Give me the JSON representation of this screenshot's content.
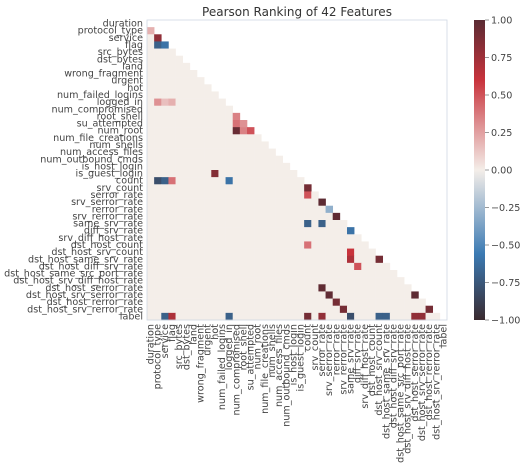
{
  "chart_data": {
    "type": "heatmap",
    "title": "Pearson Ranking of 42 Features",
    "xlabel": "",
    "ylabel": "",
    "grid": false,
    "mask": "upper-triangle",
    "features": [
      "duration",
      "protocol_type",
      "service",
      "flag",
      "src_bytes",
      "dst_bytes",
      "land",
      "wrong_fragment",
      "urgent",
      "hot",
      "num_failed_logins",
      "logged_in",
      "num_compromised",
      "root_shell",
      "su_attempted",
      "num_root",
      "num_file_creations",
      "num_shells",
      "num_access_files",
      "num_outbound_cmds",
      "is_host_login",
      "is_guest_login",
      "count",
      "srv_count",
      "serror_rate",
      "srv_serror_rate",
      "rerror_rate",
      "srv_rerror_rate",
      "same_srv_rate",
      "diff_srv_rate",
      "srv_diff_host_rate",
      "dst_host_count",
      "dst_host_srv_count",
      "dst_host_same_srv_rate",
      "dst_host_diff_srv_rate",
      "dst_host_same_src_port_rate",
      "dst_host_srv_diff_host_rate",
      "dst_host_serror_rate",
      "dst_host_srv_serror_rate",
      "dst_host_rerror_rate",
      "dst_host_srv_rerror_rate",
      "label"
    ],
    "colorbar": {
      "ticks": [
        "1.00",
        "0.75",
        "0.50",
        "0.25",
        "0.00",
        "−0.25",
        "−0.50",
        "−0.75",
        "−1.00"
      ],
      "range": [
        -1,
        1
      ],
      "colors": [
        "#3a2a2f",
        "#3b7ab3",
        "#f4eee9",
        "#c8333c",
        "#5a2b33"
      ]
    },
    "notable_correlations": [
      {
        "row": "protocol_type",
        "col": "duration",
        "value": 0.2
      },
      {
        "row": "service",
        "col": "protocol_type",
        "value": 0.8
      },
      {
        "row": "flag",
        "col": "protocol_type",
        "value": -0.7
      },
      {
        "row": "flag",
        "col": "service",
        "value": -0.6
      },
      {
        "row": "logged_in",
        "col": "protocol_type",
        "value": 0.3
      },
      {
        "row": "logged_in",
        "col": "flag",
        "value": 0.2
      },
      {
        "row": "logged_in",
        "col": "service",
        "value": 0.15
      },
      {
        "row": "root_shell",
        "col": "num_compromised",
        "value": 0.35
      },
      {
        "row": "su_attempted",
        "col": "num_compromised",
        "value": 0.4
      },
      {
        "row": "su_attempted",
        "col": "root_shell",
        "value": 0.3
      },
      {
        "row": "num_root",
        "col": "num_compromised",
        "value": 0.95
      },
      {
        "row": "num_root",
        "col": "root_shell",
        "value": 0.35
      },
      {
        "row": "num_root",
        "col": "su_attempted",
        "value": 0.5
      },
      {
        "row": "is_guest_login",
        "col": "hot",
        "value": 0.85
      },
      {
        "row": "count",
        "col": "protocol_type",
        "value": -0.8
      },
      {
        "row": "count",
        "col": "service",
        "value": -0.7
      },
      {
        "row": "count",
        "col": "flag",
        "value": 0.4
      },
      {
        "row": "count",
        "col": "logged_in",
        "value": -0.6
      },
      {
        "row": "srv_count",
        "col": "count",
        "value": 0.9
      },
      {
        "row": "serror_rate",
        "col": "count",
        "value": 0.5
      },
      {
        "row": "srv_serror_rate",
        "col": "serror_rate",
        "value": 0.99
      },
      {
        "row": "rerror_rate",
        "col": "srv_serror_rate",
        "value": -0.3
      },
      {
        "row": "srv_rerror_rate",
        "col": "rerror_rate",
        "value": 0.98
      },
      {
        "row": "same_srv_rate",
        "col": "count",
        "value": -0.7
      },
      {
        "row": "same_srv_rate",
        "col": "serror_rate",
        "value": -0.7
      },
      {
        "row": "diff_srv_rate",
        "col": "same_srv_rate",
        "value": -0.6
      },
      {
        "row": "dst_host_count",
        "col": "count",
        "value": 0.4
      },
      {
        "row": "dst_host_srv_count",
        "col": "same_srv_rate",
        "value": 0.6
      },
      {
        "row": "dst_host_same_srv_rate",
        "col": "same_srv_rate",
        "value": 0.7
      },
      {
        "row": "dst_host_same_srv_rate",
        "col": "dst_host_srv_count",
        "value": 0.9
      },
      {
        "row": "dst_host_diff_srv_rate",
        "col": "diff_srv_rate",
        "value": 0.5
      },
      {
        "row": "dst_host_serror_rate",
        "col": "serror_rate",
        "value": 0.98
      },
      {
        "row": "dst_host_srv_serror_rate",
        "col": "srv_serror_rate",
        "value": 0.98
      },
      {
        "row": "dst_host_srv_serror_rate",
        "col": "dst_host_serror_rate",
        "value": 0.99
      },
      {
        "row": "dst_host_rerror_rate",
        "col": "rerror_rate",
        "value": 0.9
      },
      {
        "row": "dst_host_srv_rerror_rate",
        "col": "srv_rerror_rate",
        "value": 0.9
      },
      {
        "row": "dst_host_srv_rerror_rate",
        "col": "dst_host_rerror_rate",
        "value": 0.9
      },
      {
        "row": "label",
        "col": "service",
        "value": -0.7
      },
      {
        "row": "label",
        "col": "flag",
        "value": 0.7
      },
      {
        "row": "label",
        "col": "logged_in",
        "value": -0.7
      },
      {
        "row": "label",
        "col": "count",
        "value": 0.9
      },
      {
        "row": "label",
        "col": "serror_rate",
        "value": 0.8
      },
      {
        "row": "label",
        "col": "same_srv_rate",
        "value": -0.8
      },
      {
        "row": "label",
        "col": "dst_host_srv_count",
        "value": -0.7
      },
      {
        "row": "label",
        "col": "dst_host_same_srv_rate",
        "value": -0.7
      },
      {
        "row": "label",
        "col": "dst_host_serror_rate",
        "value": 0.8
      },
      {
        "row": "label",
        "col": "dst_host_srv_serror_rate",
        "value": 0.8
      }
    ]
  }
}
